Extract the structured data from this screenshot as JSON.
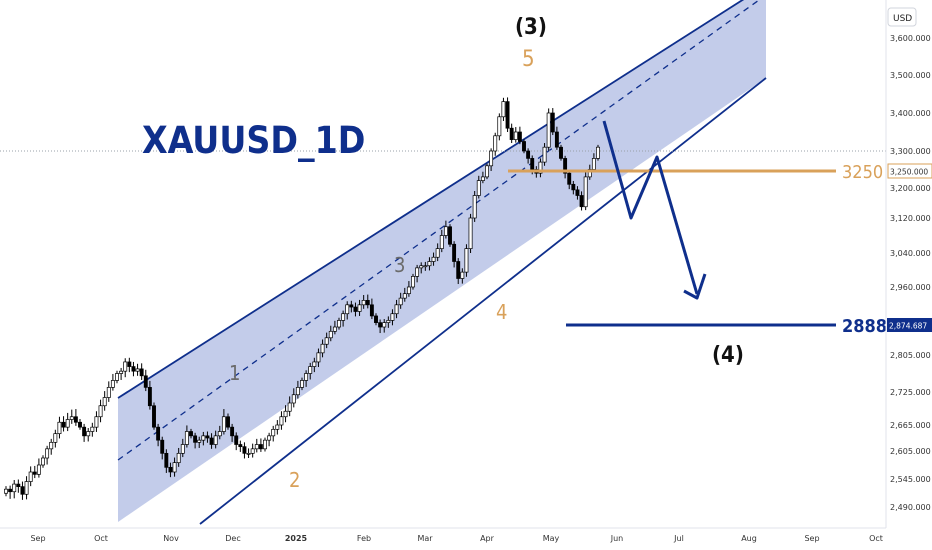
{
  "chart_data": {
    "type": "candlestick",
    "title": "XAUUSD_1D",
    "currency": "USD",
    "y_ticks": [
      "3,600.000",
      "3,500.000",
      "3,400.000",
      "3,300.000",
      "3,200.000",
      "3,120.000",
      "3,040.000",
      "2,960.000",
      "2,874.687",
      "2,805.000",
      "2,725.000",
      "2,665.000",
      "2,605.000",
      "2,545.000",
      "2,490.000"
    ],
    "x_ticks": [
      "Sep",
      "Oct",
      "Nov",
      "Dec",
      "2025",
      "Feb",
      "Mar",
      "Apr",
      "May",
      "Jun",
      "Jul",
      "Aug",
      "Sep",
      "Oct"
    ],
    "price_labels": {
      "current": "3,250.000",
      "target": "2,874.687"
    },
    "levels": [
      {
        "label": "3250",
        "value": 3250,
        "color": "#d9a15a"
      },
      {
        "label": "2888",
        "value": 2888,
        "color": "#0f2f8c"
      }
    ],
    "wave_labels": {
      "w1": "1",
      "w2": "2",
      "w3": "3",
      "w4": "4",
      "w5": "5",
      "major_3": "(3)",
      "major_4": "(4)"
    },
    "channel": {
      "fill": "#7b8fd1",
      "line": "#0f2f8c"
    },
    "colors": {
      "bull": "#ffffff",
      "bear": "#000000",
      "arrow": "#0f2f8c",
      "orange": "#d9a15a",
      "gray": "#6b6b6b"
    },
    "close_series": [
      2525,
      2520,
      2535,
      2530,
      2515,
      2540,
      2560,
      2555,
      2575,
      2590,
      2610,
      2625,
      2645,
      2670,
      2660,
      2675,
      2680,
      2670,
      2660,
      2640,
      2650,
      2660,
      2680,
      2700,
      2715,
      2735,
      2750,
      2765,
      2770,
      2790,
      2780,
      2770,
      2775,
      2760,
      2735,
      2700,
      2660,
      2630,
      2600,
      2570,
      2560,
      2580,
      2600,
      2620,
      2650,
      2640,
      2625,
      2630,
      2640,
      2635,
      2620,
      2640,
      2650,
      2680,
      2660,
      2640,
      2620,
      2615,
      2600,
      2600,
      2610,
      2620,
      2610,
      2630,
      2640,
      2655,
      2665,
      2680,
      2690,
      2705,
      2720,
      2735,
      2750,
      2765,
      2780,
      2790,
      2810,
      2830,
      2845,
      2860,
      2870,
      2885,
      2900,
      2920,
      2915,
      2905,
      2920,
      2930,
      2920,
      2895,
      2880,
      2870,
      2880,
      2885,
      2900,
      2920,
      2935,
      2945,
      2960,
      2985,
      3005,
      3010,
      3010,
      3020,
      3030,
      3050,
      3080,
      3100,
      3060,
      3020,
      2980,
      2995,
      3050,
      3120,
      3180,
      3220,
      3230,
      3260,
      3300,
      3340,
      3390,
      3430,
      3360,
      3330,
      3350,
      3325,
      3300,
      3280,
      3250,
      3240,
      3270,
      3310,
      3400,
      3350,
      3310,
      3280,
      3240,
      3210,
      3195,
      3180,
      3150,
      3230,
      3250,
      3280,
      3310
    ]
  }
}
